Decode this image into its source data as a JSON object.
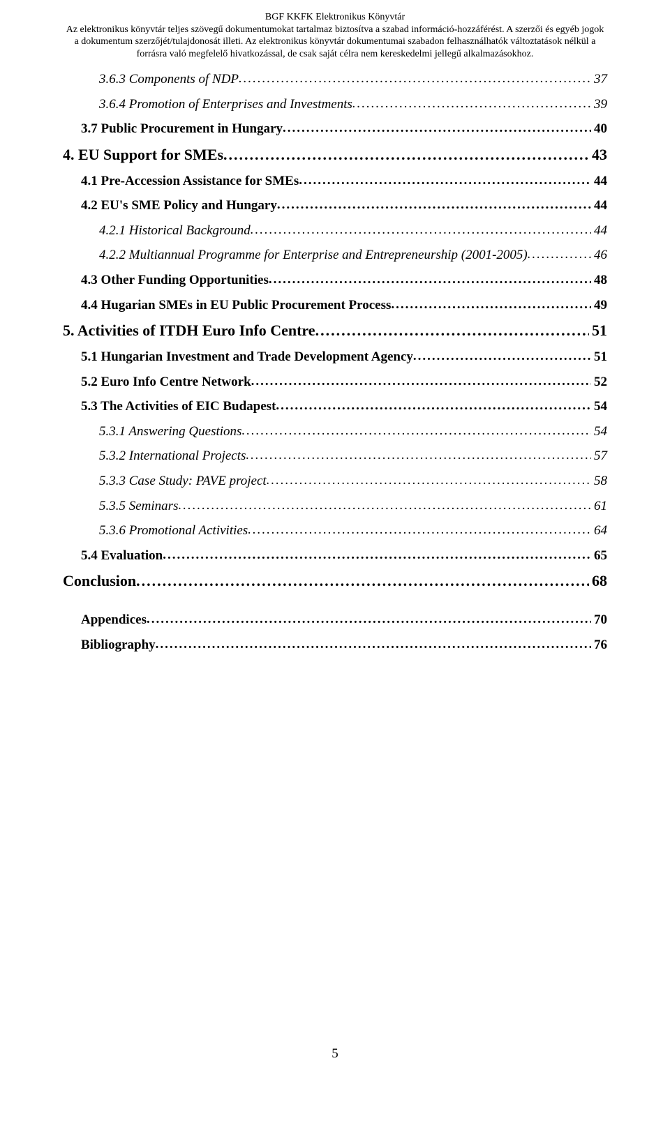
{
  "header": {
    "title": "BGF KKFK Elektronikus Könyvtár",
    "line1": "Az elektronikus könyvtár teljes szövegű dokumentumokat tartalmaz biztosítva a szabad információ-hozzáférést. A szerzői és egyéb jogok",
    "line2": "a dokumentum szerzőjét/tulajdonosát illeti. Az elektronikus könyvtár dokumentumai szabadon felhasználhatók változtatások nélkül a",
    "line3": "forrásra való megfelelő hivatkozással, de csak saját célra nem kereskedelmi jellegű alkalmazásokhoz."
  },
  "toc": [
    {
      "level": 3,
      "label": "3.6.3 Components of NDP",
      "page": "37"
    },
    {
      "level": 3,
      "label": "3.6.4 Promotion of Enterprises and Investments",
      "page": "39"
    },
    {
      "level": 2,
      "label": "3.7 Public Procurement in Hungary",
      "page": "40"
    },
    {
      "level": 1,
      "label": "4. EU Support for SMEs",
      "page": "43"
    },
    {
      "level": 2,
      "label": "4.1 Pre-Accession Assistance for SMEs",
      "page": "44"
    },
    {
      "level": 2,
      "label": "4.2 EU's SME Policy and Hungary",
      "page": "44"
    },
    {
      "level": 3,
      "label": "4.2.1 Historical Background",
      "page": "44"
    },
    {
      "level": 3,
      "label": "4.2.2 Multiannual Programme for Enterprise and Entrepreneurship (2001-2005)",
      "page": "46"
    },
    {
      "level": 2,
      "label": "4.3 Other Funding Opportunities",
      "page": "48"
    },
    {
      "level": 2,
      "label": "4.4 Hugarian SMEs in EU Public Procurement Process",
      "page": "49"
    },
    {
      "level": 1,
      "label": "5. Activities of ITDH Euro Info Centre",
      "page": "51"
    },
    {
      "level": 2,
      "label": "5.1 Hungarian Investment and Trade Development Agency",
      "page": "51"
    },
    {
      "level": 2,
      "label": "5.2 Euro Info Centre Network",
      "page": "52"
    },
    {
      "level": 2,
      "label": "5.3 The Activities of EIC Budapest",
      "page": "54"
    },
    {
      "level": 3,
      "label": "5.3.1 Answering Questions",
      "page": "54"
    },
    {
      "level": 3,
      "label": "5.3.2 International Projects",
      "page": "57"
    },
    {
      "level": 3,
      "label": "5.3.3 Case Study: PAVE project",
      "page": "58"
    },
    {
      "level": 3,
      "label": "5.3.5 Seminars",
      "page": "61"
    },
    {
      "level": 3,
      "label": "5.3.6 Promotional Activities",
      "page": "64"
    },
    {
      "level": 2,
      "label": "5.4 Evaluation",
      "page": "65"
    },
    {
      "level": 1,
      "label": "Conclusion",
      "page": "68"
    },
    {
      "level": "spacer"
    },
    {
      "level": 2,
      "label": "Appendices",
      "page": "70"
    },
    {
      "level": 2,
      "label": "Bibliography",
      "page": "76"
    }
  ],
  "page_number": "5"
}
